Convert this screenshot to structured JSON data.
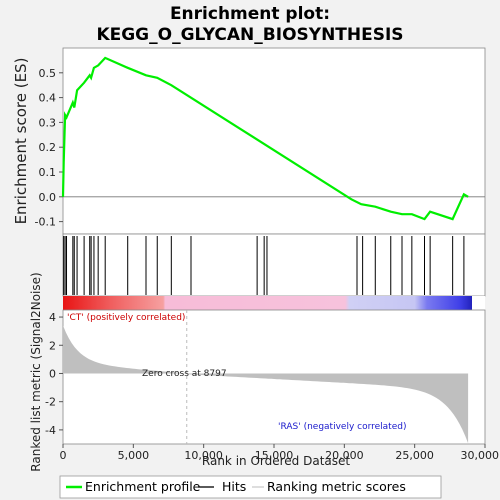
{
  "chart_data": {
    "type": "line",
    "title": "Enrichment plot:",
    "subtitle": "KEGG_O_GLYCAN_BIOSYNTHESIS",
    "xlabel": "Rank in Ordered Dataset",
    "ylabel_top": "Enrichment score (ES)",
    "ylabel_bottom": "Ranked list metric (Signal2Noise)",
    "x_ticks": [
      0,
      5000,
      10000,
      15000,
      20000,
      25000,
      30000
    ],
    "x_tick_labels": [
      "0",
      "5,000",
      "10,000",
      "15,000",
      "20,000",
      "25,000",
      "30,000"
    ],
    "xlim": [
      0,
      30000
    ],
    "es_ylim": [
      -0.15,
      0.6
    ],
    "es_ticks": [
      -0.1,
      0.0,
      0.1,
      0.2,
      0.3,
      0.4,
      0.5
    ],
    "es_tick_labels": [
      "-0.1",
      "0.0",
      "0.1",
      "0.2",
      "0.3",
      "0.4",
      "0.5"
    ],
    "metric_ylim": [
      -5,
      4.5
    ],
    "metric_ticks": [
      -4,
      -2,
      0,
      2,
      4
    ],
    "metric_tick_labels": [
      "-4",
      "-2",
      "0",
      "2",
      "4"
    ],
    "es_curve": {
      "x": [
        0,
        50,
        150,
        250,
        700,
        800,
        1000,
        1500,
        1900,
        2000,
        2200,
        2500,
        3000,
        4600,
        5900,
        6700,
        7700,
        20500,
        21200,
        22200,
        23300,
        24100,
        24800,
        25700,
        26100,
        27700,
        28500,
        28800
      ],
      "y": [
        0.0,
        0.14,
        0.33,
        0.32,
        0.38,
        0.36,
        0.43,
        0.46,
        0.49,
        0.48,
        0.52,
        0.53,
        0.56,
        0.52,
        0.49,
        0.48,
        0.45,
        -0.01,
        -0.03,
        -0.04,
        -0.06,
        -0.07,
        -0.07,
        -0.09,
        -0.06,
        -0.09,
        0.01,
        0.0
      ]
    },
    "hits": [
      50,
      150,
      250,
      700,
      800,
      1000,
      1500,
      1900,
      2000,
      2200,
      2500,
      3000,
      4600,
      5900,
      6700,
      7700,
      9100,
      13800,
      14300,
      14500,
      20900,
      21300,
      22200,
      23300,
      24100,
      24800,
      25700,
      26100,
      27700,
      28500
    ],
    "zero_cross": 8797,
    "zero_cross_label": "Zero cross at 8797",
    "pos_label": "'CT' (positively correlated)",
    "neg_label": "'RAS' (negatively correlated)",
    "total_rank": 28800,
    "legend": [
      "Enrichment profile",
      "Hits",
      "Ranking metric scores"
    ],
    "colors": {
      "es_line": "#00ee00",
      "hits": "#000000",
      "metric_fill": "#bfbfbf",
      "pos_label": "#cc0000",
      "neg_label": "#1a1acc",
      "zero_line": "#bbbbbb"
    }
  }
}
